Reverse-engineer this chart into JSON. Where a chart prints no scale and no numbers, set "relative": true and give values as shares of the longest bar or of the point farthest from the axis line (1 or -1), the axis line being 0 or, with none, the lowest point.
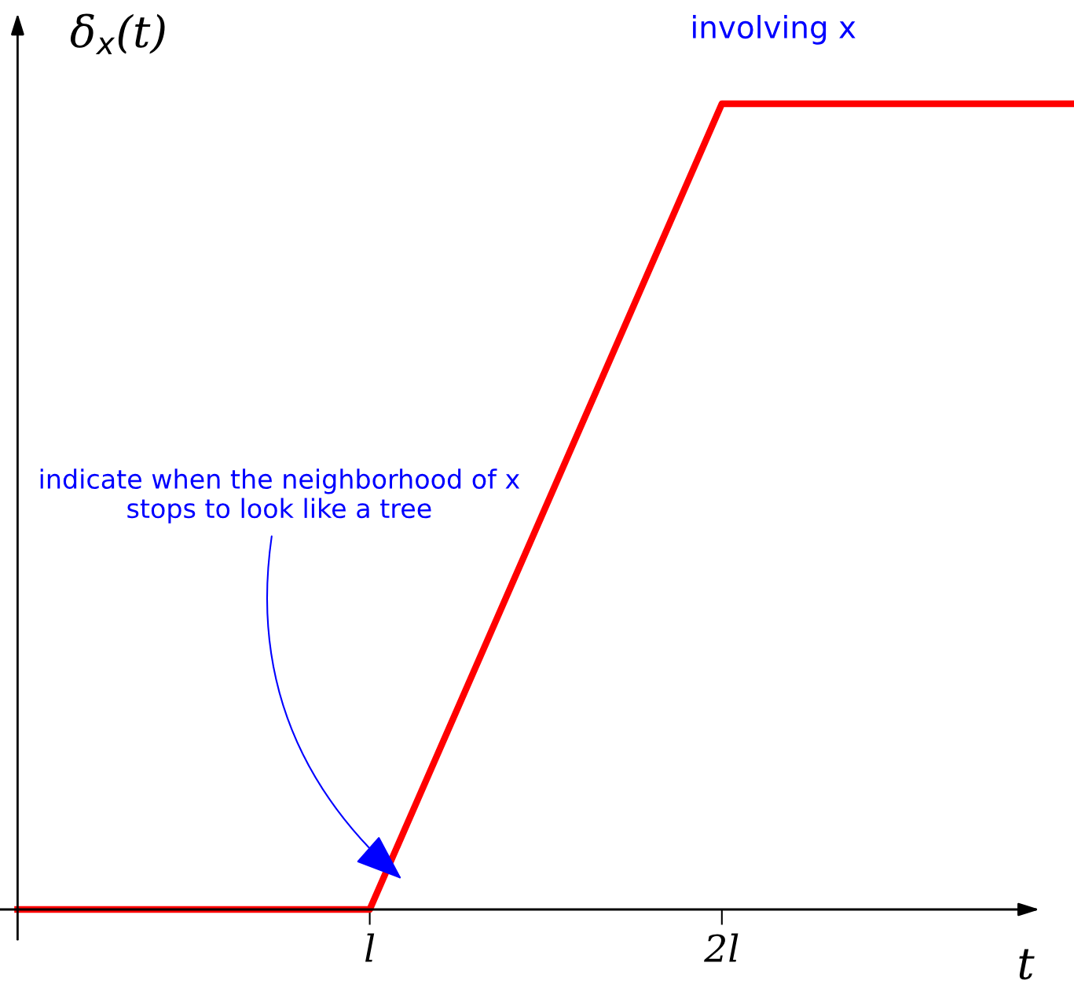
{
  "chart_data": {
    "type": "line",
    "relative": true,
    "categories": [
      null,
      "l",
      "2l",
      null
    ],
    "series": [
      {
        "color": "#ff0000",
        "values": [
          0,
          0,
          1,
          1
        ]
      }
    ],
    "xlabel": "t",
    "ylabel": "δ$_{x}$(t)",
    "grid": false,
    "legend": false,
    "marker": "none",
    "line_style": "solid",
    "annotations": [
      "indicate when the neighborhood of x stops to look like a tree",
      "involving x"
    ]
  }
}
